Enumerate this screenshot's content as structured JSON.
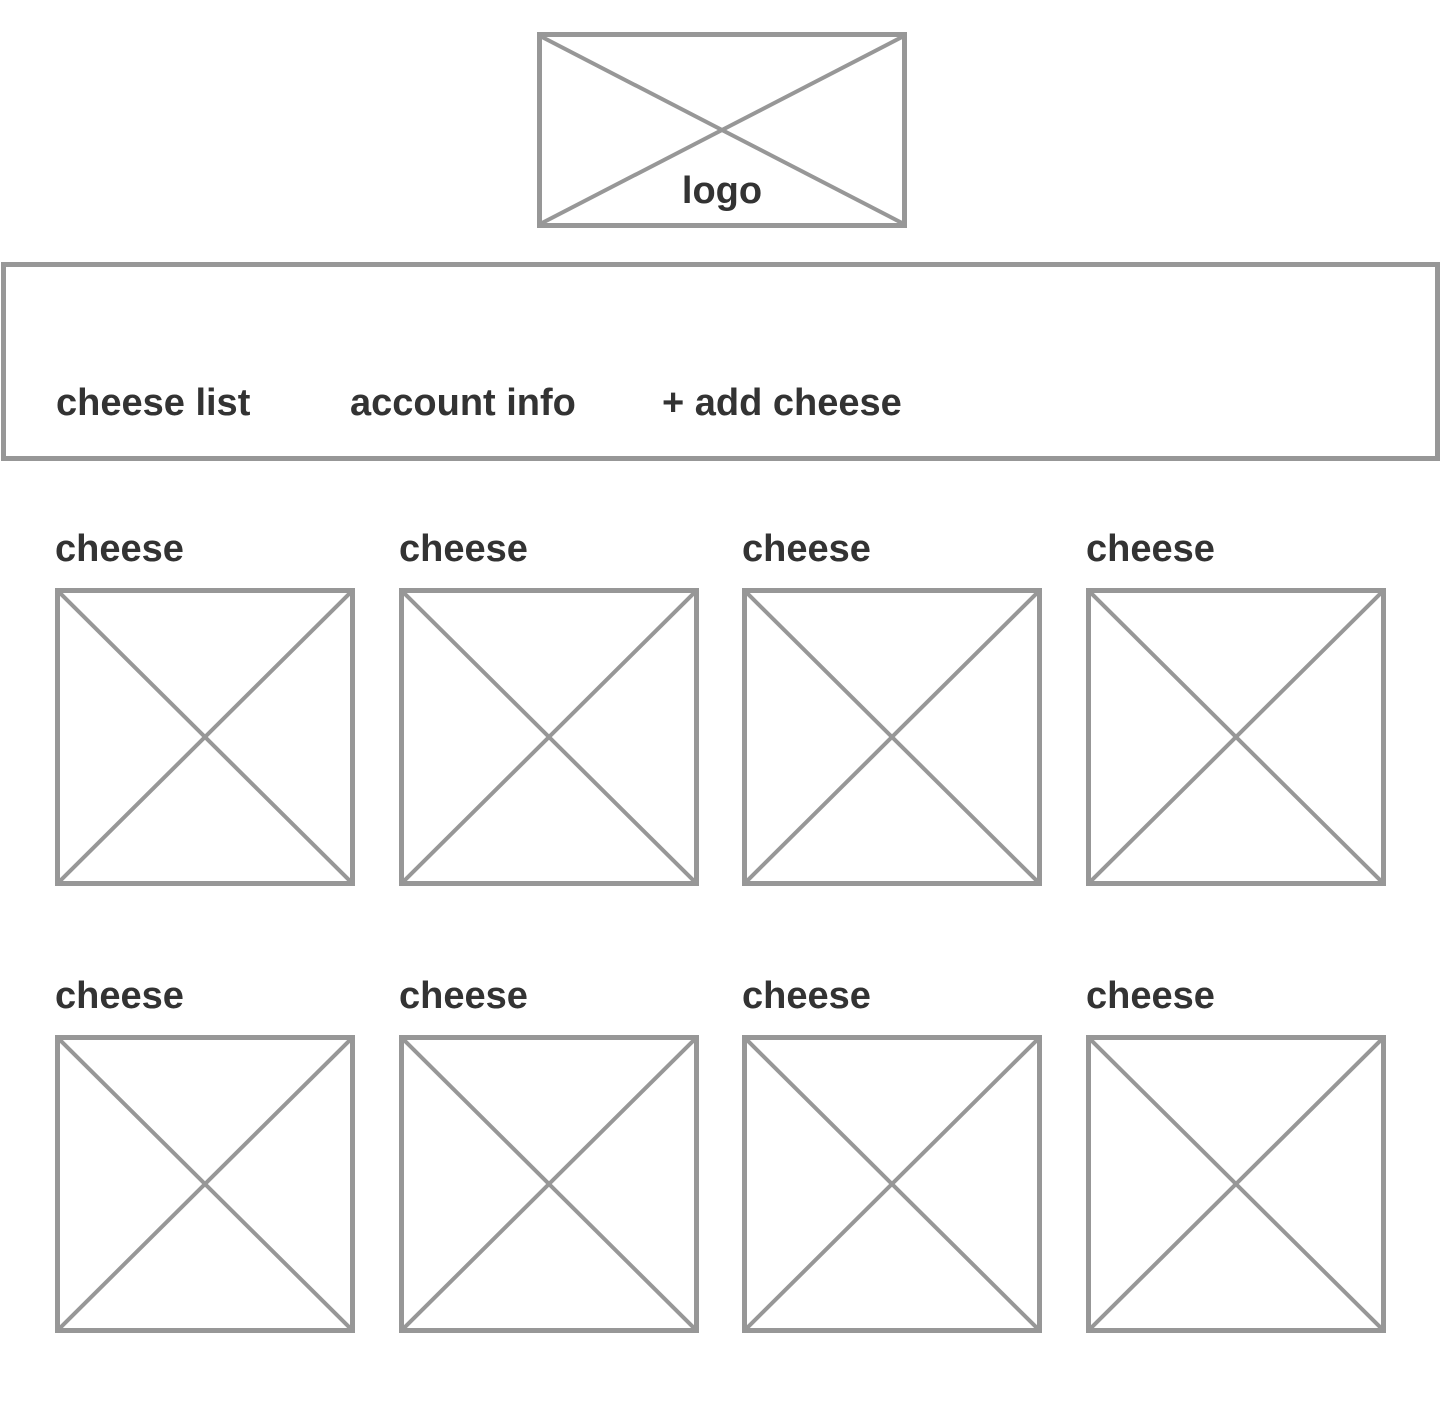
{
  "logo": {
    "label": "logo"
  },
  "nav": {
    "items": [
      {
        "label": "cheese list"
      },
      {
        "label": "account info"
      },
      {
        "label": "+ add cheese"
      }
    ]
  },
  "cheeses": [
    {
      "label": "cheese"
    },
    {
      "label": "cheese"
    },
    {
      "label": "cheese"
    },
    {
      "label": "cheese"
    },
    {
      "label": "cheese"
    },
    {
      "label": "cheese"
    },
    {
      "label": "cheese"
    },
    {
      "label": "cheese"
    }
  ],
  "colors": {
    "placeholder_stroke": "#979797",
    "text": "#333333",
    "background": "#ffffff"
  }
}
